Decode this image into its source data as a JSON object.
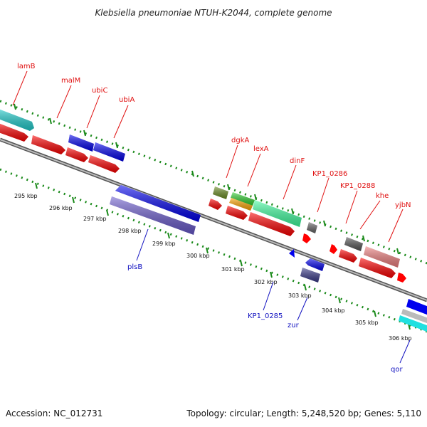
{
  "title": "Klebsiella pneumoniae NTUH-K2044, complete genome",
  "footer": {
    "accession": "Accession: NC_012731",
    "summary": "Topology: circular; Length: 5,248,520 bp; Genes: 5,110"
  },
  "colors": {
    "red": "#ff0000",
    "blue": "#0000ee",
    "purple": "#6a5acd",
    "navy": "#3a3a8a",
    "cyan": "#20d0d0",
    "green": "#40ffa0",
    "olive": "#6b8e23",
    "orange": "#ffa500",
    "grey": "#666666",
    "pink": "#f08080",
    "ruler_green": "#1a8a1a",
    "backbone": "#888888"
  },
  "ticks": [
    "295 kbp",
    "296 kbp",
    "297 kbp",
    "298 kbp",
    "299 kbp",
    "300 kbp",
    "301 kbp",
    "302 kbp",
    "303 kbp",
    "304 kbp",
    "305 kbp",
    "306 kbp"
  ],
  "labels": {
    "top": [
      "lamB",
      "malM",
      "ubiC",
      "ubiA",
      "dgkA",
      "lexA",
      "dinF",
      "KP1_0286",
      "KP1_0288",
      "khe",
      "yjbN"
    ],
    "bottom": [
      "plsB",
      "KP1_0285",
      "zur",
      "qor"
    ]
  }
}
